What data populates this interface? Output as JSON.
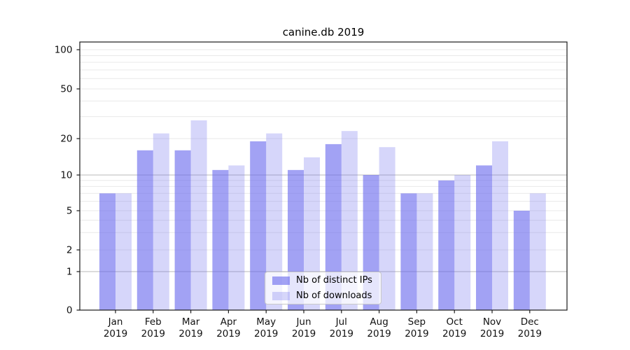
{
  "figure": {
    "title": "canine.db 2019"
  },
  "legend": {
    "items": [
      {
        "label": "Nb of distinct IPs",
        "swatch": "dark"
      },
      {
        "label": "Nb of downloads",
        "swatch": "light"
      }
    ],
    "position": "lower center"
  },
  "colors": {
    "bar_dark": "rgba(105,105,237,0.62)",
    "bar_light": "rgba(105,105,237,0.27)",
    "bar_dark_hex": "#a3a3f3",
    "bar_light_hex": "#d8d8f9",
    "grid_major": "#b9b9b9",
    "grid_minor": "#e9e9e9",
    "frame": "#1a1a1a",
    "text": "#111111",
    "background": "#ffffff"
  },
  "chart_data": {
    "type": "bar",
    "title": "canine.db 2019",
    "categories": [
      "Jan 2019",
      "Feb 2019",
      "Mar 2019",
      "Apr 2019",
      "May 2019",
      "Jun 2019",
      "Jul 2019",
      "Aug 2019",
      "Sep 2019",
      "Oct 2019",
      "Nov 2019",
      "Dec 2019"
    ],
    "months": [
      "Jan",
      "Feb",
      "Mar",
      "Apr",
      "May",
      "Jun",
      "Jul",
      "Aug",
      "Sep",
      "Oct",
      "Nov",
      "Dec"
    ],
    "year": "2019",
    "series": [
      {
        "name": "Nb of distinct IPs",
        "values": [
          7,
          16,
          16,
          11,
          19,
          11,
          18,
          10,
          7,
          9,
          12,
          5
        ]
      },
      {
        "name": "Nb of downloads",
        "values": [
          7,
          22,
          28,
          12,
          22,
          14,
          23,
          17,
          7,
          10,
          19,
          7
        ]
      }
    ],
    "xlabel": "",
    "ylabel": "",
    "yscale": "symlog",
    "yticks": [
      0,
      1,
      2,
      5,
      10,
      20,
      50,
      100
    ],
    "ylim": [
      0,
      115
    ],
    "grid": "horizontal major+minor (log minors), on",
    "legend_position": "lower center"
  }
}
